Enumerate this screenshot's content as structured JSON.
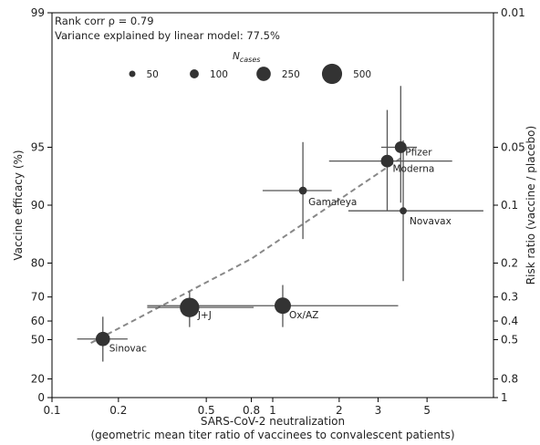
{
  "chart_data": {
    "type": "scatter",
    "annotations": {
      "line1": "Rank corr ρ = 0.79",
      "line2": "Variance explained by linear model: 77.5%"
    },
    "xlabel": {
      "line1": "SARS-CoV-2 neutralization",
      "line2": "(geometric mean titer ratio of vaccinees to convalescent patients)"
    },
    "ylabel_left": "Vaccine efficacy (%)",
    "ylabel_right": "Risk ratio (vaccine / placebo)",
    "x_scale": "log",
    "xlim": [
      0.1,
      10
    ],
    "x_ticks": [
      0.1,
      0.2,
      0.5,
      0.8,
      1,
      2,
      3,
      5
    ],
    "x_tick_labels": [
      "0.1",
      "0.2",
      "0.5",
      "0.8",
      "1",
      "2",
      "3",
      "5"
    ],
    "y_scale": "log risk ratio",
    "risk_ratio_range": [
      1,
      0.01
    ],
    "y_ticks_efficacy": [
      0,
      20,
      50,
      60,
      70,
      80,
      90,
      95,
      99
    ],
    "y_tick_labels_left": [
      "0",
      "20",
      "50",
      "60",
      "70",
      "80",
      "90",
      "95",
      "99"
    ],
    "y_ticks_risk_ratio": [
      1,
      0.8,
      0.5,
      0.4,
      0.3,
      0.2,
      0.1,
      0.05,
      0.01
    ],
    "y_tick_labels_right": [
      "1",
      "0.8",
      "0.5",
      "0.4",
      "0.3",
      "0.2",
      "0.1",
      "0.05",
      "0.01"
    ],
    "legend": {
      "title_main": "N",
      "title_sub": "cases",
      "entries": [
        {
          "n": 50,
          "label": "50"
        },
        {
          "n": 100,
          "label": "100"
        },
        {
          "n": 250,
          "label": "250"
        },
        {
          "n": 500,
          "label": "500"
        }
      ],
      "placement": "top-center"
    },
    "points": [
      {
        "name": "Sinovac",
        "x": 0.17,
        "efficacy": 50.4,
        "x_err": [
          0.13,
          0.22
        ],
        "eff_ci": [
          35,
          62
        ],
        "n_cases": 250
      },
      {
        "name": "J+J",
        "x": 0.42,
        "efficacy": 66,
        "x_err": [
          0.27,
          0.82
        ],
        "eff_ci": [
          57,
          72
        ],
        "n_cases": 465
      },
      {
        "name": "Ox/AZ",
        "x": 1.11,
        "efficacy": 66.7,
        "x_err": [
          0.27,
          3.7
        ],
        "eff_ci": [
          57,
          74
        ],
        "n_cases": 330
      },
      {
        "name": "Gamaleya",
        "x": 1.37,
        "efficacy": 91.6,
        "x_err": [
          0.9,
          1.85
        ],
        "eff_ci": [
          85,
          95.3
        ],
        "n_cases": 78
      },
      {
        "name": "Moderna",
        "x": 3.3,
        "efficacy": 94.1,
        "x_err": [
          1.8,
          6.5
        ],
        "eff_ci": [
          89.3,
          96.8
        ],
        "n_cases": 196
      },
      {
        "name": "Pfizer",
        "x": 3.8,
        "efficacy": 95,
        "x_err": [
          3.1,
          4.5
        ],
        "eff_ci": [
          90.3,
          97.6
        ],
        "n_cases": 170
      },
      {
        "name": "Novavax",
        "x": 3.9,
        "efficacy": 89.3,
        "x_err": [
          2.2,
          9.0
        ],
        "eff_ci": [
          75.2,
          95.4
        ],
        "n_cases": 62
      }
    ],
    "fit_line": {
      "style": "dashed",
      "color": "#888888",
      "points": [
        {
          "x": 0.15,
          "efficacy": 48
        },
        {
          "x": 0.8,
          "efficacy": 81
        },
        {
          "x": 3.8,
          "efficacy": 94.3
        }
      ]
    },
    "point_color": "#333333",
    "grid": false
  }
}
